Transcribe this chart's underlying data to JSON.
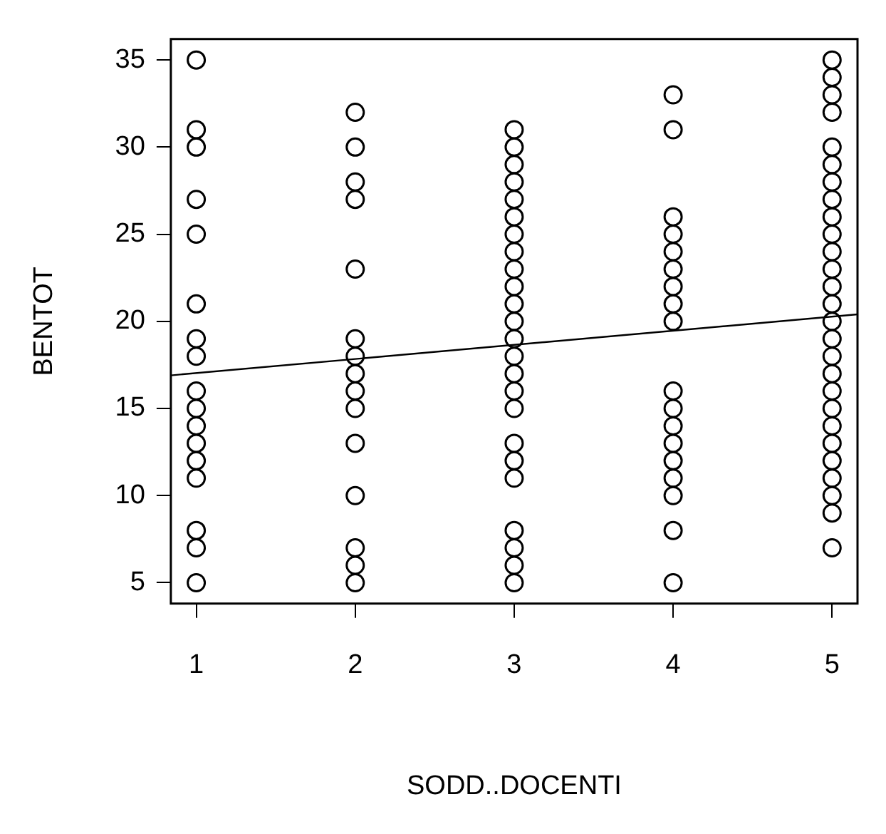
{
  "chart_data": {
    "type": "scatter",
    "xlabel": "SODD..DOCENTI",
    "ylabel": "BENTOT",
    "xlim": [
      0.84,
      5.16
    ],
    "ylim": [
      3.8,
      36.2
    ],
    "xticks": [
      1,
      2,
      3,
      4,
      5
    ],
    "yticks": [
      5,
      10,
      15,
      20,
      25,
      30,
      35
    ],
    "grid": false,
    "legend": false,
    "marker": "circle",
    "series": [
      {
        "color": "#000000",
        "x": [
          1,
          1,
          1,
          1,
          1,
          1,
          1,
          1,
          1,
          1,
          1,
          1,
          1,
          1,
          1,
          1,
          1,
          2,
          2,
          2,
          2,
          2,
          2,
          2,
          2,
          2,
          2,
          2,
          2,
          2,
          2,
          2,
          3,
          3,
          3,
          3,
          3,
          3,
          3,
          3,
          3,
          3,
          3,
          3,
          3,
          3,
          3,
          3,
          3,
          3,
          3,
          3,
          3,
          3,
          3,
          3,
          4,
          4,
          4,
          4,
          4,
          4,
          4,
          4,
          4,
          4,
          4,
          4,
          4,
          4,
          4,
          4,
          4,
          4,
          5,
          5,
          5,
          5,
          5,
          5,
          5,
          5,
          5,
          5,
          5,
          5,
          5,
          5,
          5,
          5,
          5,
          5,
          5,
          5,
          5,
          5,
          5,
          5,
          5,
          5,
          5
        ],
        "values": [
          35,
          31,
          30,
          27,
          25,
          21,
          19,
          18,
          16,
          15,
          14,
          13,
          12,
          11,
          8,
          7,
          5,
          32,
          30,
          28,
          27,
          23,
          19,
          18,
          17,
          16,
          15,
          13,
          10,
          7,
          6,
          5,
          31,
          30,
          29,
          28,
          27,
          26,
          25,
          24,
          23,
          22,
          21,
          20,
          19,
          18,
          17,
          16,
          15,
          13,
          12,
          11,
          8,
          7,
          6,
          5,
          33,
          31,
          26,
          25,
          24,
          23,
          22,
          21,
          20,
          16,
          15,
          14,
          13,
          12,
          11,
          10,
          8,
          5,
          35,
          34,
          33,
          32,
          30,
          29,
          28,
          27,
          26,
          25,
          24,
          23,
          22,
          21,
          20,
          19,
          18,
          17,
          16,
          15,
          14,
          13,
          12,
          11,
          10,
          9,
          7
        ]
      },
      {
        "type": "line",
        "color": "#000000",
        "x": [
          0.84,
          5.16
        ],
        "values": [
          16.9,
          20.4
        ],
        "line_style": "solid",
        "marker": "none"
      }
    ]
  }
}
